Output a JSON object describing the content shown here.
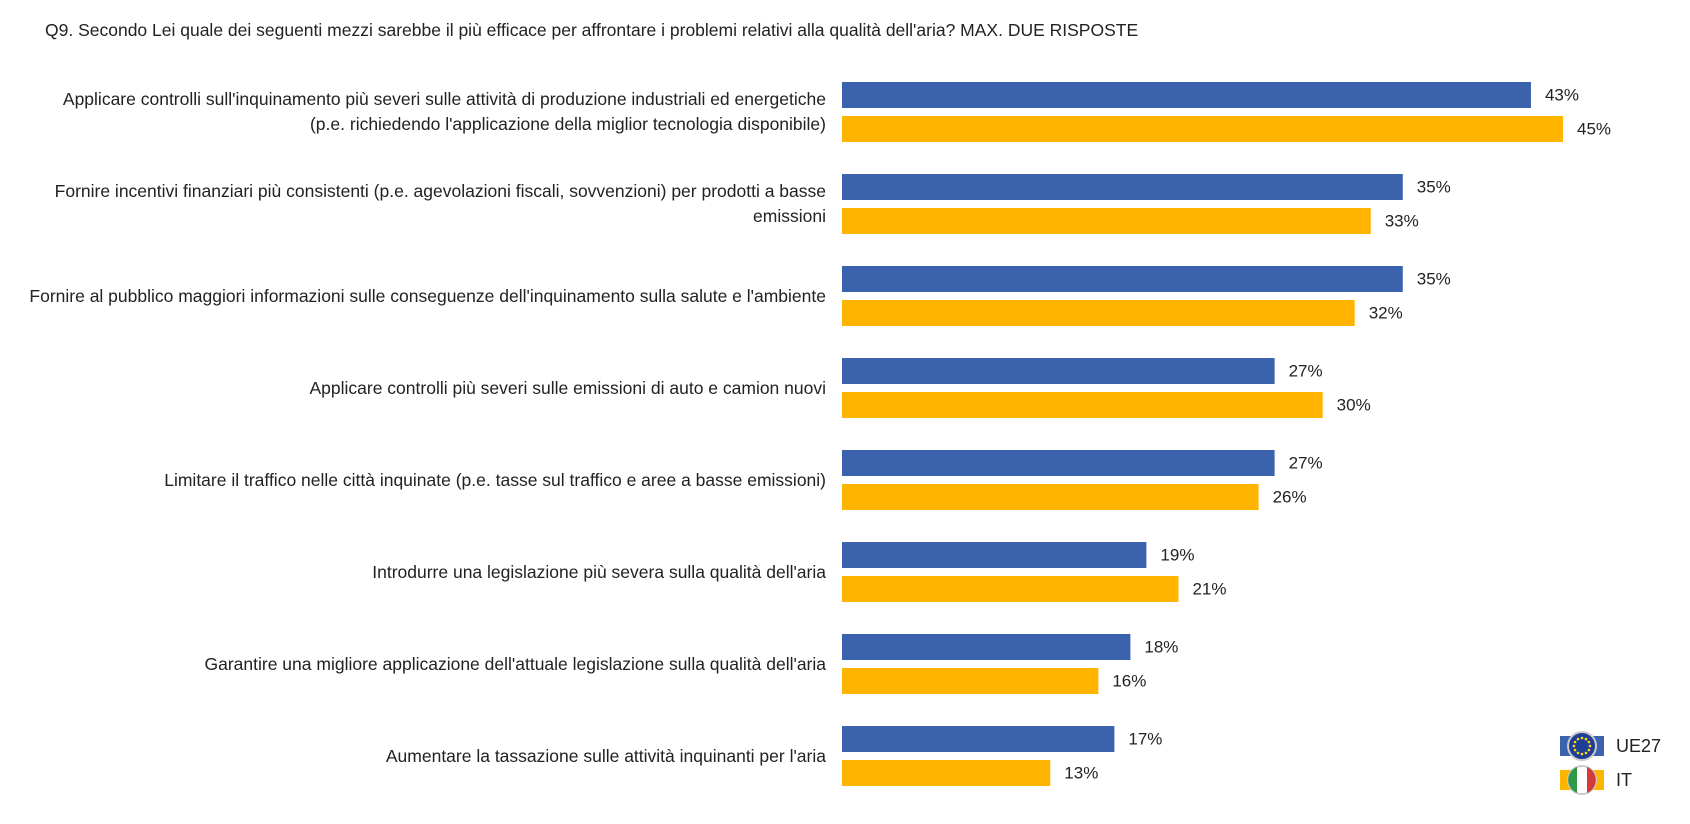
{
  "chart_data": {
    "type": "bar",
    "orientation": "horizontal",
    "title": "Q9. Secondo Lei quale dei seguenti mezzi sarebbe il più efficace per affrontare i problemi relativi alla qualità dell'aria? MAX. DUE RISPOSTE",
    "categories": [
      "Applicare controlli sull'inquinamento più severi sulle attività di produzione industriali ed energetiche (p.e. richiedendo l'applicazione della miglior tecnologia disponibile)",
      "Fornire incentivi finanziari più consistenti (p.e. agevolazioni fiscali, sovvenzioni) per prodotti a basse emissioni",
      "Fornire al pubblico maggiori informazioni sulle conseguenze dell'inquinamento sulla salute e l'ambiente",
      "Applicare controlli più severi sulle emissioni di auto e camion nuovi",
      "Limitare il traffico nelle città inquinate (p.e. tasse sul traffico e aree a basse emissioni)",
      "Introdurre una legislazione più severa sulla qualità dell'aria",
      "Garantire una migliore applicazione dell'attuale legislazione sulla qualità dell'aria",
      "Aumentare la tassazione sulle attività inquinanti per l'aria"
    ],
    "series": [
      {
        "name": "UE27",
        "color": "#3a62ad",
        "values": [
          43,
          35,
          35,
          27,
          27,
          19,
          18,
          17
        ],
        "value_labels": [
          "43%",
          "35%",
          "35%",
          "27%",
          "27%",
          "19%",
          "18%",
          "17%"
        ]
      },
      {
        "name": "IT",
        "color": "#ffb400",
        "values": [
          45,
          33,
          32,
          30,
          26,
          21,
          16,
          13
        ],
        "value_labels": [
          "45%",
          "33%",
          "32%",
          "30%",
          "26%",
          "21%",
          "16%",
          "13%"
        ]
      }
    ],
    "legend": "bottom-right"
  }
}
